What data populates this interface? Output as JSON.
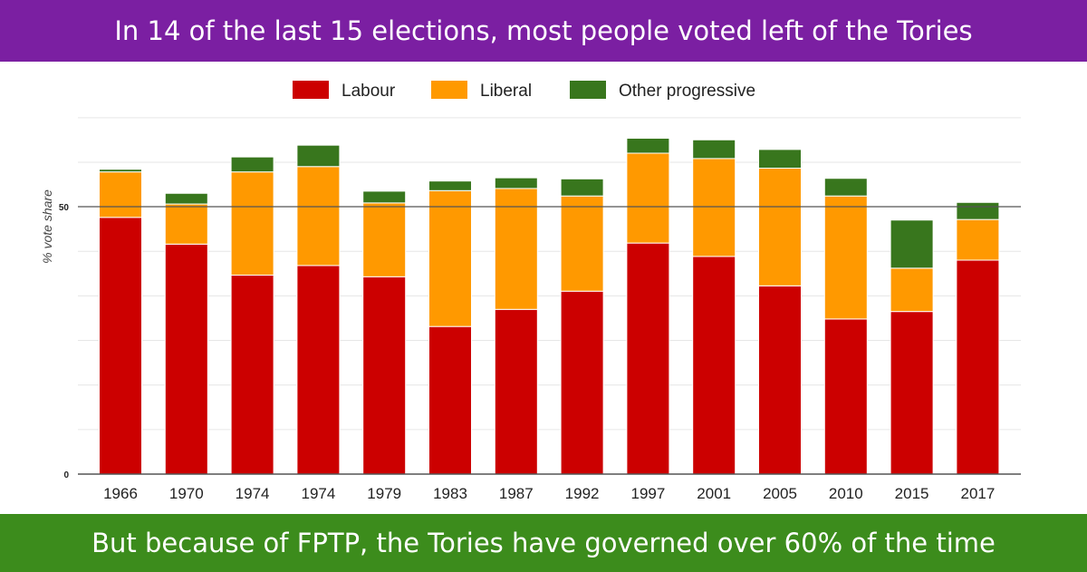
{
  "header": {
    "title": "In 14 of the last 15 elections, most people voted left of the Tories"
  },
  "footer": {
    "caption": "But because of FPTP, the Tories have governed over 60% of the time"
  },
  "colors": {
    "header_bg": "#7b1fa2",
    "footer_bg": "#3c8c1c",
    "labour": "#cc0000",
    "liberal": "#ff9900",
    "other": "#38761d",
    "grid": "#e6e6e6",
    "gridline_major": "#555555"
  },
  "chart_data": {
    "type": "bar",
    "stacked": true,
    "categories": [
      "1966",
      "1970",
      "1974",
      "1974",
      "1979",
      "1983",
      "1987",
      "1992",
      "1997",
      "2001",
      "2005",
      "2010",
      "2015",
      "2017"
    ],
    "series": [
      {
        "name": "Labour",
        "key": "labour",
        "values": [
          48.0,
          43.0,
          37.2,
          39.0,
          36.9,
          27.6,
          30.8,
          34.2,
          43.2,
          40.7,
          35.2,
          29.0,
          30.4,
          40.0
        ]
      },
      {
        "name": "Liberal",
        "key": "liberal",
        "values": [
          8.5,
          7.5,
          19.3,
          18.5,
          13.8,
          25.4,
          22.6,
          17.8,
          16.8,
          18.3,
          22.0,
          23.0,
          8.1,
          7.6
        ]
      },
      {
        "name": "Other progressive",
        "key": "other",
        "values": [
          0.5,
          2.0,
          2.8,
          4.0,
          2.2,
          1.8,
          2.0,
          3.2,
          2.8,
          3.5,
          3.5,
          3.3,
          9.0,
          3.2
        ]
      }
    ],
    "title": "",
    "xlabel": "",
    "ylabel": "% vote share",
    "ylim": [
      0,
      67
    ],
    "yticks": [
      0,
      50
    ],
    "minor_grid_step": 8.33,
    "legend": "top-center"
  }
}
